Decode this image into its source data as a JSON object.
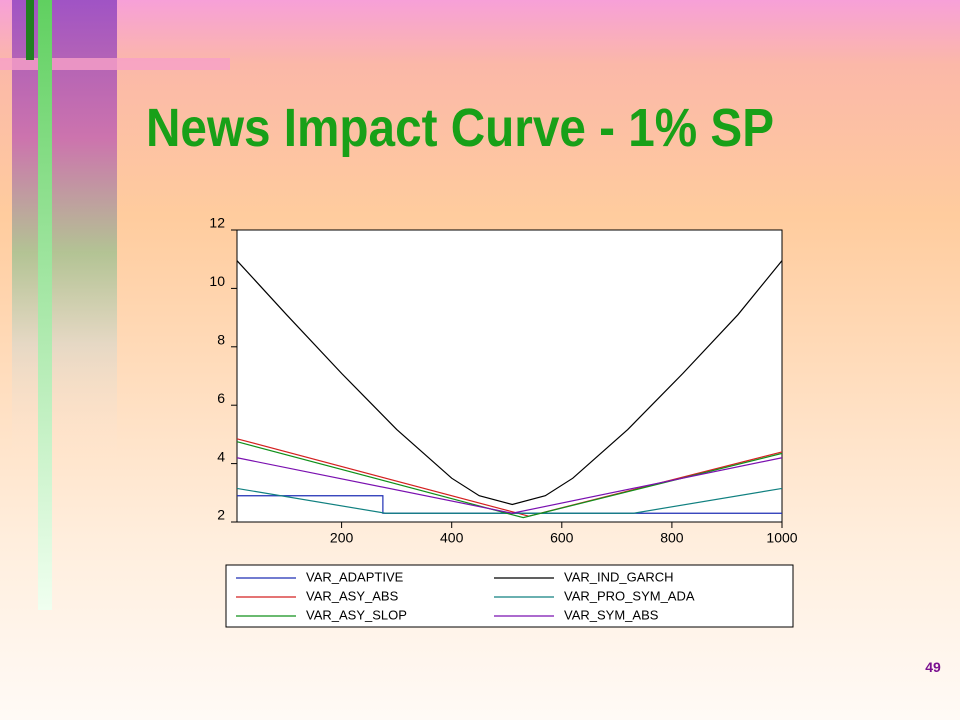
{
  "page_number": "49",
  "chart_data": {
    "type": "line",
    "title": "News Impact Curve - 1% SP",
    "xlim": [
      10,
      1000
    ],
    "xticks": [
      200,
      400,
      600,
      800,
      1000
    ],
    "ylim": [
      2,
      12
    ],
    "yticks": [
      2,
      4,
      6,
      8,
      10,
      12
    ],
    "series": [
      {
        "name": "VAR_ADAPTIVE",
        "color": "#1f2fb5",
        "x": [
          10,
          275,
          275,
          1000
        ],
        "values": [
          2.9,
          2.9,
          2.3,
          2.3
        ]
      },
      {
        "name": "VAR_IND_GARCH",
        "color": "#000000",
        "x": [
          10,
          100,
          200,
          300,
          400,
          450,
          510,
          570,
          620,
          720,
          820,
          920,
          1000
        ],
        "values": [
          10.95,
          9.1,
          7.09,
          5.17,
          3.5,
          2.9,
          2.6,
          2.9,
          3.5,
          5.17,
          7.09,
          9.1,
          10.95
        ]
      },
      {
        "name": "VAR_ASY_ABS",
        "color": "#d42020",
        "x": [
          10,
          540,
          1000
        ],
        "values": [
          4.85,
          2.2,
          4.4
        ]
      },
      {
        "name": "VAR_PRO_SYM_ADA",
        "color": "#108080",
        "x": [
          10,
          280,
          730,
          1000
        ],
        "values": [
          3.15,
          2.3,
          2.3,
          3.15
        ]
      },
      {
        "name": "VAR_ASY_SLOP",
        "color": "#10901a",
        "x": [
          10,
          530,
          1000
        ],
        "values": [
          4.75,
          2.15,
          4.35
        ]
      },
      {
        "name": "VAR_SYM_ABS",
        "color": "#7a10b0",
        "x": [
          10,
          510,
          1000
        ],
        "values": [
          4.2,
          2.3,
          4.2
        ]
      }
    ]
  }
}
